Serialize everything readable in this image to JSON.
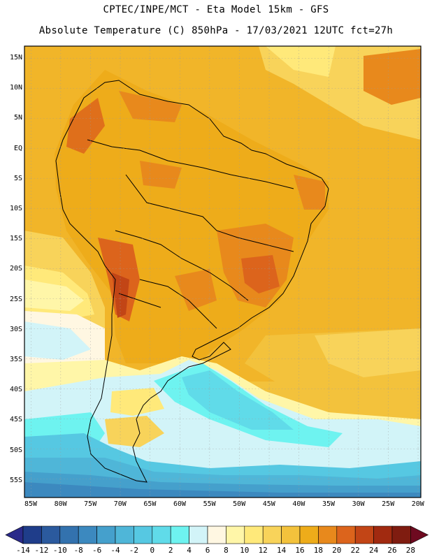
{
  "header": {
    "line1": "CPTEC/INPE/MCT -  Eta Model 15km - GFS",
    "line2": "Absolute Temperature (C) 850hPa - 17/03/2021 12UTC fct=27h"
  },
  "latitude_labels": [
    "15N",
    "10N",
    "5N",
    "EQ",
    "5S",
    "10S",
    "15S",
    "20S",
    "25S",
    "30S",
    "35S",
    "40S",
    "45S",
    "50S",
    "55S"
  ],
  "longitude_labels": [
    "85W",
    "80W",
    "75W",
    "70W",
    "65W",
    "60W",
    "55W",
    "50W",
    "45W",
    "40W",
    "35W",
    "30W",
    "25W",
    "20W"
  ],
  "colorbar": {
    "labels": [
      "-14",
      "-12",
      "-10",
      "-8",
      "-6",
      "-4",
      "-2",
      "0",
      "2",
      "4",
      "6",
      "8",
      "10",
      "12",
      "14",
      "16",
      "18",
      "20",
      "22",
      "24",
      "26",
      "28"
    ],
    "colors": [
      "#1f3d8a",
      "#2b5a9e",
      "#3372ae",
      "#3c89bf",
      "#45a0cc",
      "#4fb6d8",
      "#56c8e2",
      "#60dbe9",
      "#6ef3f0",
      "#d2f4f8",
      "#fff7e2",
      "#fff6a8",
      "#ffe97a",
      "#f8d35a",
      "#f3c23c",
      "#eeac1a",
      "#e8891c",
      "#dc641c",
      "#c24516",
      "#a12a10",
      "#7f1c10"
    ],
    "low_cap_color": "#2a2a8a",
    "high_cap_color": "#6e0a20"
  }
}
